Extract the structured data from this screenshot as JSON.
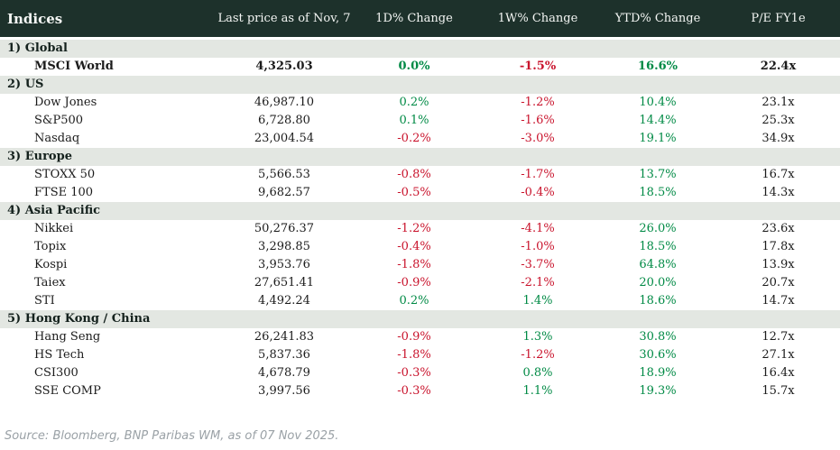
{
  "header": {
    "columns": [
      "Indices",
      "Last price as of Nov, 7",
      "1D% Change",
      "1W% Change",
      "YTD% Change",
      "P/E FY1e"
    ]
  },
  "sections": [
    {
      "label": "1) Global",
      "rows": [
        {
          "name": "MSCI World",
          "last": "4,325.03",
          "d1": "0.0%",
          "w1": "-1.5%",
          "ytd": "16.6%",
          "pe": "22.4x",
          "bold": true
        }
      ]
    },
    {
      "label": "2) US",
      "rows": [
        {
          "name": "Dow Jones",
          "last": "46,987.10",
          "d1": "0.2%",
          "w1": "-1.2%",
          "ytd": "10.4%",
          "pe": "23.1x"
        },
        {
          "name": "S&P500",
          "last": "6,728.80",
          "d1": "0.1%",
          "w1": "-1.6%",
          "ytd": "14.4%",
          "pe": "25.3x"
        },
        {
          "name": "Nasdaq",
          "last": "23,004.54",
          "d1": "-0.2%",
          "w1": "-3.0%",
          "ytd": "19.1%",
          "pe": "34.9x"
        }
      ]
    },
    {
      "label": "3) Europe",
      "rows": [
        {
          "name": "STOXX 50",
          "last": "5,566.53",
          "d1": "-0.8%",
          "w1": "-1.7%",
          "ytd": "13.7%",
          "pe": "16.7x"
        },
        {
          "name": "FTSE 100",
          "last": "9,682.57",
          "d1": "-0.5%",
          "w1": "-0.4%",
          "ytd": "18.5%",
          "pe": "14.3x"
        }
      ]
    },
    {
      "label": "4) Asia Pacific",
      "rows": [
        {
          "name": "Nikkei",
          "last": "50,276.37",
          "d1": "-1.2%",
          "w1": "-4.1%",
          "ytd": "26.0%",
          "pe": "23.6x"
        },
        {
          "name": "Topix",
          "last": "3,298.85",
          "d1": "-0.4%",
          "w1": "-1.0%",
          "ytd": "18.5%",
          "pe": "17.8x"
        },
        {
          "name": "Kospi",
          "last": "3,953.76",
          "d1": "-1.8%",
          "w1": "-3.7%",
          "ytd": "64.8%",
          "pe": "13.9x"
        },
        {
          "name": "Taiex",
          "last": "27,651.41",
          "d1": "-0.9%",
          "w1": "-2.1%",
          "ytd": "20.0%",
          "pe": "20.7x"
        },
        {
          "name": "STI",
          "last": "4,492.24",
          "d1": "0.2%",
          "w1": "1.4%",
          "ytd": "18.6%",
          "pe": "14.7x"
        }
      ]
    },
    {
      "label": "5) Hong Kong / China",
      "rows": [
        {
          "name": "Hang Seng",
          "last": "26,241.83",
          "d1": "-0.9%",
          "w1": "1.3%",
          "ytd": "30.8%",
          "pe": "12.7x"
        },
        {
          "name": "HS Tech",
          "last": "5,837.36",
          "d1": "-1.8%",
          "w1": "-1.2%",
          "ytd": "30.6%",
          "pe": "27.1x"
        },
        {
          "name": "CSI300",
          "last": "4,678.79",
          "d1": "-0.3%",
          "w1": "0.8%",
          "ytd": "18.9%",
          "pe": "16.4x"
        },
        {
          "name": "SSE COMP",
          "last": "3,997.56",
          "d1": "-0.3%",
          "w1": "1.1%",
          "ytd": "19.3%",
          "pe": "15.7x"
        }
      ]
    }
  ],
  "source": "Source: Bloomberg, BNP Paribas WM, as of 07 Nov 2025.",
  "colors": {
    "header_bg": "#1d312b",
    "header_text": "#f4f6f4",
    "section_bg": "#e3e7e2",
    "positive": "#008a45",
    "negative": "#c9132c"
  }
}
